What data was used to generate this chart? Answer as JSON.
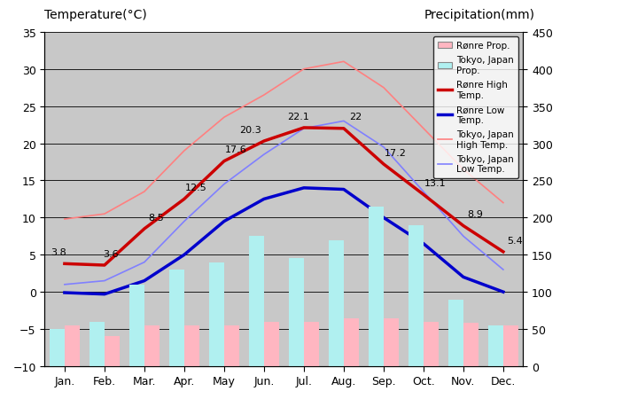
{
  "months": [
    "Jan.",
    "Feb.",
    "Mar.",
    "Apr.",
    "May",
    "Jun.",
    "Jul.",
    "Aug.",
    "Sep.",
    "Oct.",
    "Nov.",
    "Dec."
  ],
  "ronre_high_temp": [
    3.8,
    3.6,
    8.5,
    12.5,
    17.6,
    20.3,
    22.1,
    22.0,
    17.2,
    13.1,
    8.9,
    5.4
  ],
  "ronre_low_temp": [
    -0.1,
    -0.3,
    1.5,
    5.0,
    9.5,
    12.5,
    14.0,
    13.8,
    10.0,
    6.5,
    2.0,
    0.0
  ],
  "tokyo_high_temp": [
    9.8,
    10.5,
    13.5,
    19.0,
    23.5,
    26.5,
    30.0,
    31.0,
    27.5,
    22.0,
    16.5,
    12.0
  ],
  "tokyo_low_temp": [
    1.0,
    1.5,
    4.0,
    9.5,
    14.5,
    18.5,
    22.0,
    23.0,
    19.5,
    13.5,
    7.5,
    3.0
  ],
  "ronre_precip_mm": [
    55,
    40,
    55,
    55,
    55,
    60,
    60,
    65,
    65,
    60,
    58,
    55
  ],
  "tokyo_precip_mm": [
    50,
    60,
    110,
    130,
    140,
    175,
    145,
    170,
    215,
    190,
    90,
    55
  ],
  "bg_color": "#c8c8c8",
  "title_left": "Temperature(°C)",
  "title_right": "Precipitation(mm)",
  "ylim_temp": [
    -10,
    35
  ],
  "ylim_precip": [
    0,
    450
  ],
  "ronre_high_color": "#cc0000",
  "ronre_low_color": "#0000cc",
  "tokyo_high_color": "#ff8080",
  "tokyo_low_color": "#8080ff",
  "ronre_bar_color": "#ffb6c1",
  "tokyo_bar_color": "#b0f0f0",
  "grid_color": "#000000",
  "label_fontsize": 9,
  "annot_fontsize": 8
}
